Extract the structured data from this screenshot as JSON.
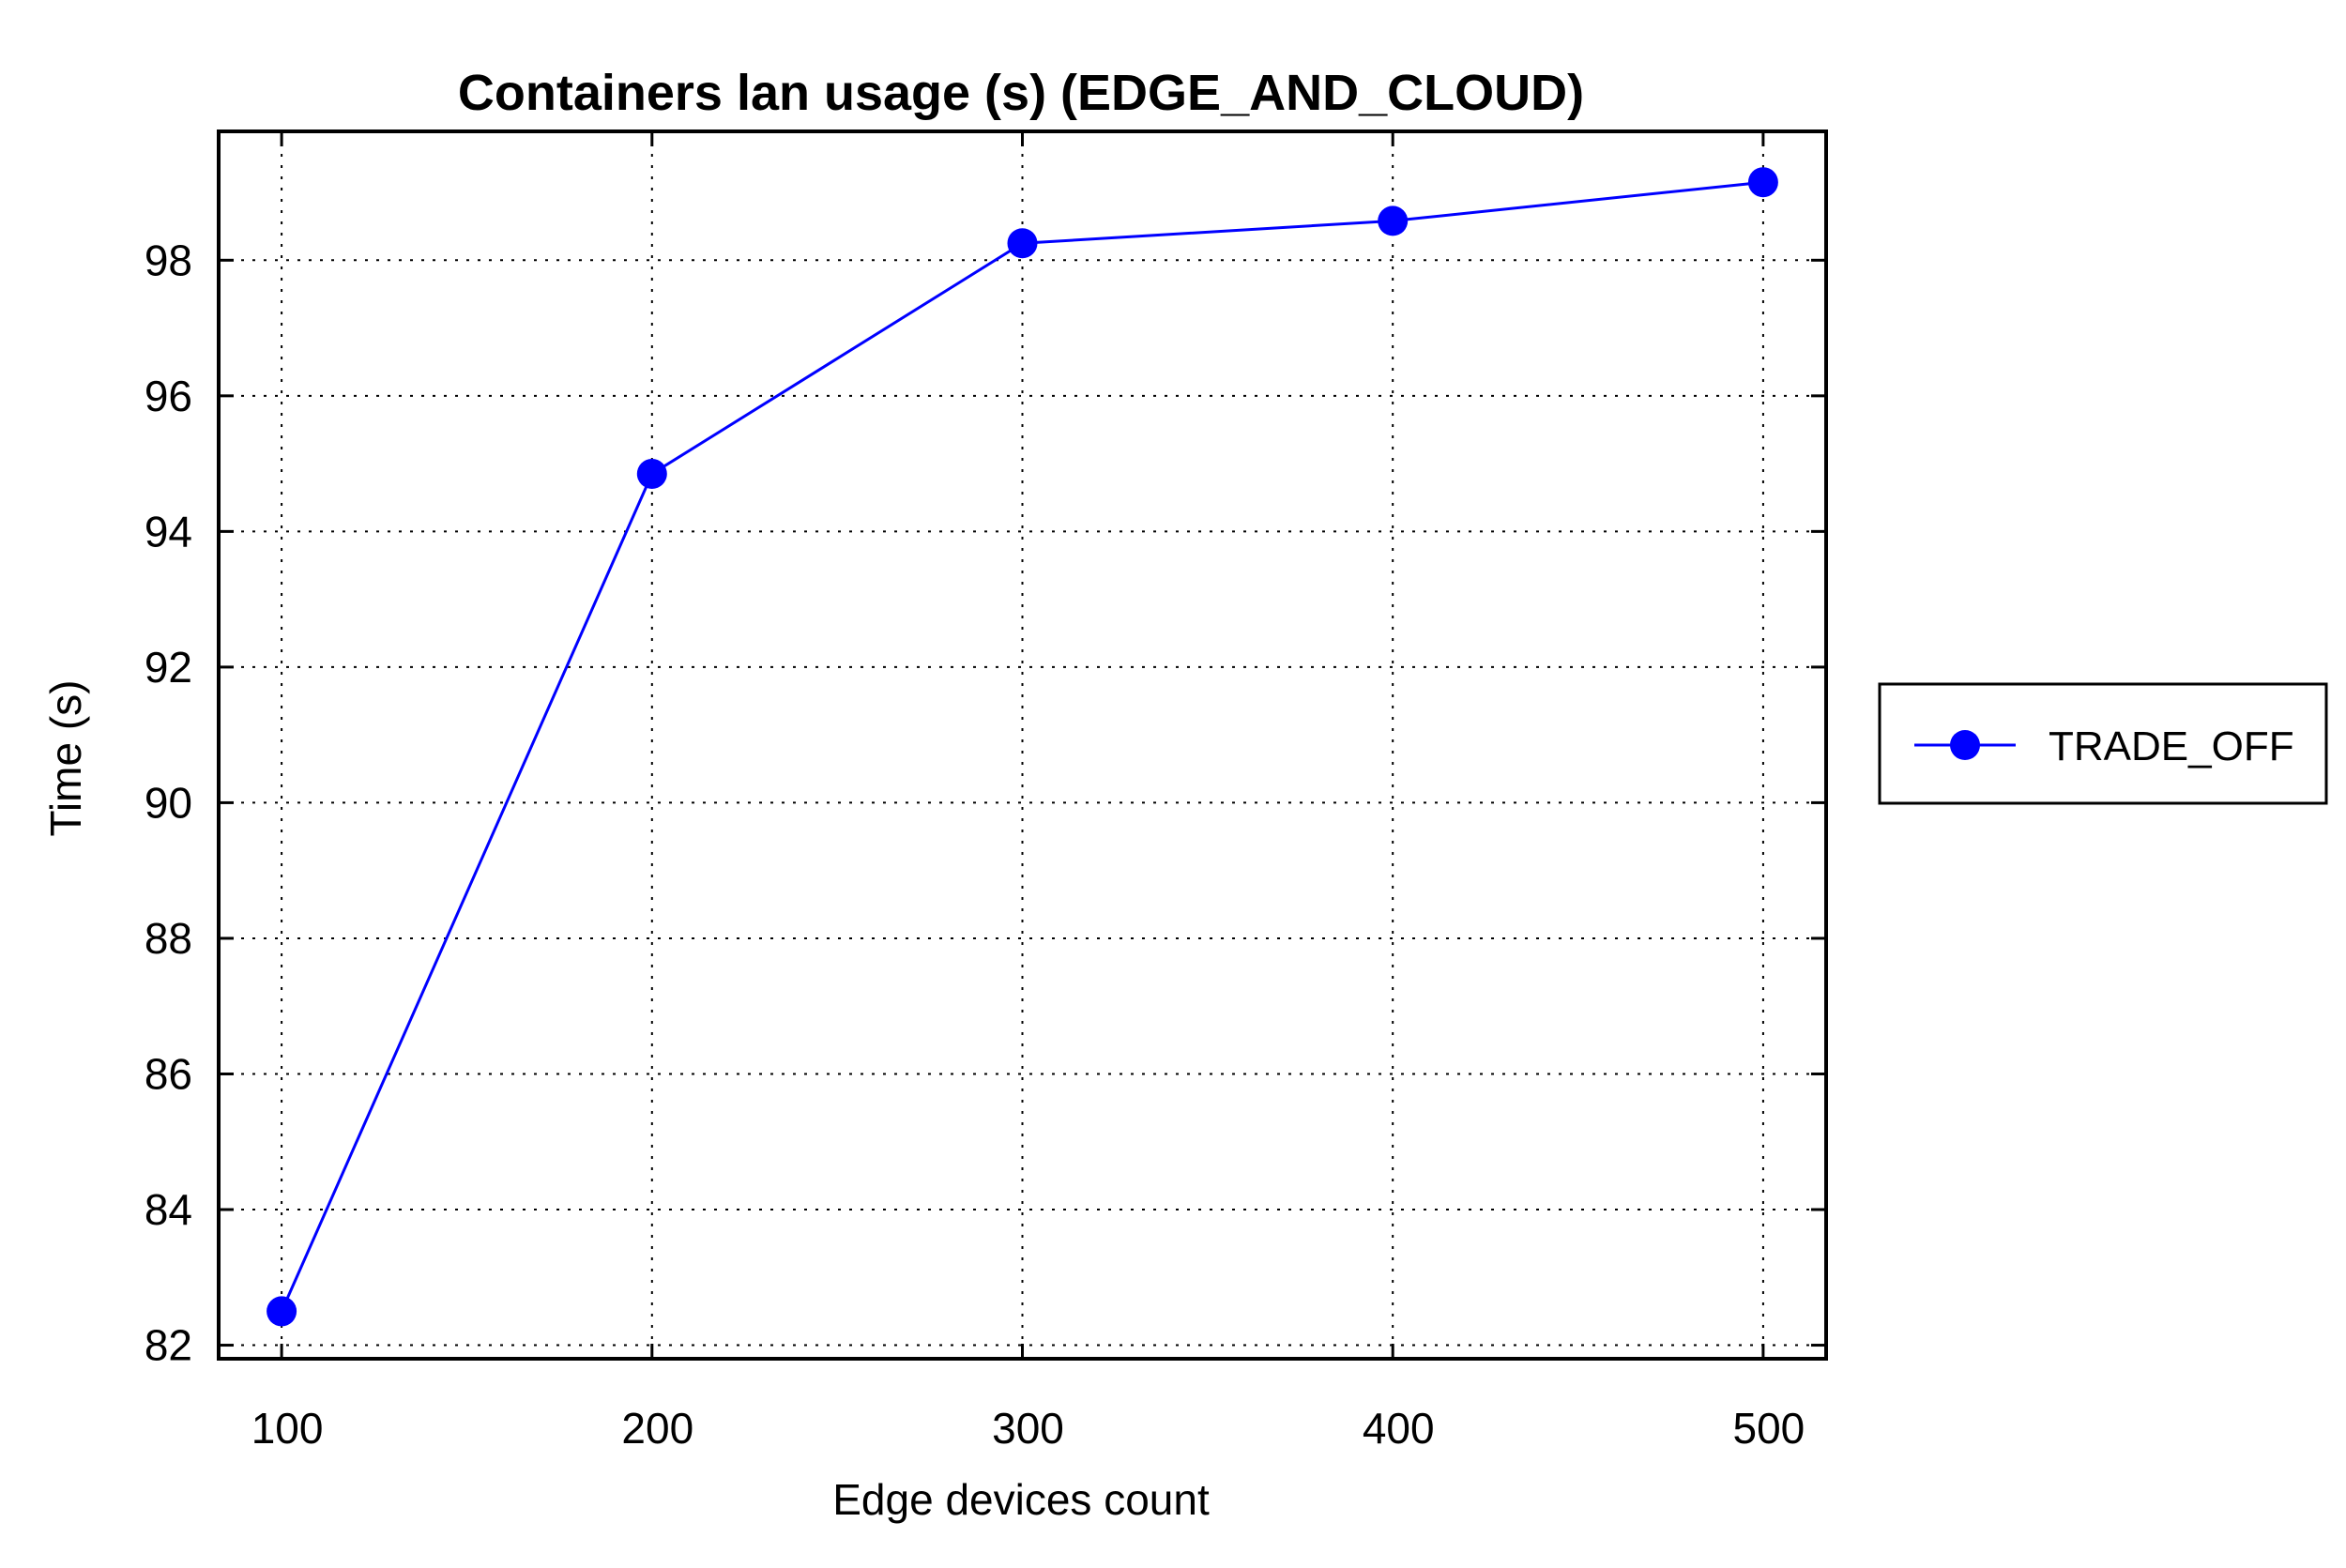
{
  "chart_data": {
    "type": "line",
    "title": "Containers lan usage (s) (EDGE_AND_CLOUD)",
    "xlabel": "Edge devices count",
    "ylabel": "Time (s)",
    "x": [
      100,
      200,
      300,
      400,
      500
    ],
    "xticks": [
      "100",
      "200",
      "300",
      "400",
      "500"
    ],
    "yticks": [
      "82",
      "84",
      "86",
      "88",
      "90",
      "92",
      "94",
      "96",
      "98"
    ],
    "xlim": [
      83,
      517
    ],
    "ylim": [
      81.8,
      99.9
    ],
    "grid": true,
    "legend_position": "outside-right",
    "series": [
      {
        "name": "TRADE_OFF",
        "values": [
          82.5,
          94.85,
          98.25,
          98.58,
          99.15
        ],
        "color": "#0000ff"
      }
    ]
  }
}
